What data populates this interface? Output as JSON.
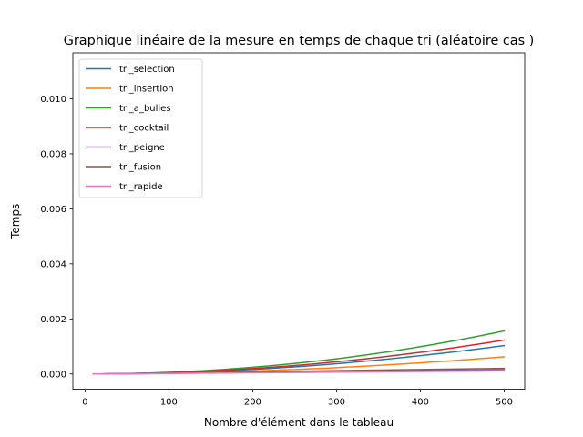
{
  "chart_data": {
    "type": "line",
    "title": "Graphique linéaire de la mesure en temps de chaque tri (aléatoire cas )",
    "xlabel": "Nombre d'élément dans le tableau",
    "ylabel": "Temps",
    "xlim": [
      -14.5,
      524.5
    ],
    "ylim": [
      -0.000556,
      0.011669
    ],
    "xticks": [
      0,
      100,
      200,
      300,
      400,
      500
    ],
    "xtick_labels": [
      "0",
      "100",
      "200",
      "300",
      "400",
      "500"
    ],
    "yticks": [
      0,
      0.002,
      0.004,
      0.006,
      0.008,
      0.01
    ],
    "ytick_labels": [
      "0.000",
      "0.002",
      "0.004",
      "0.006",
      "0.008",
      "0.010"
    ],
    "legend_position": "top-left",
    "grid": false,
    "x": [
      10,
      20,
      30,
      40,
      50,
      60,
      70,
      80,
      90,
      100,
      110,
      120,
      130,
      140,
      150,
      160,
      170,
      180,
      190,
      200,
      210,
      220,
      230,
      240,
      250,
      260,
      270,
      280,
      290,
      300,
      310,
      320,
      330,
      340,
      350,
      360,
      370,
      380,
      390,
      400,
      410,
      420,
      430,
      440,
      450,
      460,
      470,
      480,
      490,
      500
    ],
    "series": [
      {
        "name": "tri_selection",
        "color": "#1f77b4",
        "values": [
          4e-07,
          1.8e-06,
          3.9e-06,
          6.9e-06,
          1.07e-05,
          1.53e-05,
          2.08e-05,
          2.71e-05,
          3.42e-05,
          4.21e-05,
          5.09e-05,
          6.04e-05,
          7.08e-05,
          8.2e-05,
          9.4e-05,
          0.0001069,
          0.0001206,
          0.000135,
          0.0001503,
          0.0001664,
          0.0001834,
          0.0002011,
          0.0002196,
          0.000239,
          0.0002592,
          0.00028,
          0.000302,
          0.000325,
          0.000348,
          0.000373,
          0.000398,
          0.000425,
          0.000452,
          0.00048,
          0.00051,
          0.000539,
          0.00057,
          0.000601,
          0.000633,
          0.000665,
          0.000699,
          0.000733,
          0.000768,
          0.000804,
          0.00084,
          0.000877,
          0.000915,
          0.000953,
          0.000992,
          0.001033
        ]
      },
      {
        "name": "tri_insertion",
        "color": "#ff7f0e",
        "values": [
          3e-07,
          1.1e-06,
          2.6e-06,
          4.8e-06,
          7.1e-06,
          1.05e-05,
          1.36e-05,
          1.84e-05,
          2.22e-05,
          2.85e-05,
          3.49e-05,
          4.05e-05,
          4.78e-05,
          5.3e-05,
          6.24e-05,
          7.1e-05,
          7.78e-05,
          9e-05,
          9.82e-05,
          0.000107,
          0.000119,
          0.000129,
          0.00014,
          0.000153,
          0.000161,
          0.000176,
          0.00019,
          0.000201,
          0.000213,
          0.00023,
          0.000248,
          0.000262,
          0.000277,
          0.000295,
          0.000311,
          0.000333,
          0.000348,
          0.000367,
          0.000387,
          0.000404,
          0.000427,
          0.000444,
          0.000466,
          0.000485,
          0.00051,
          0.000529,
          0.000554,
          0.000576,
          0.0006,
          0.000625
        ]
      },
      {
        "name": "tri_a_bulles",
        "color": "#2ca02c",
        "values": [
          5e-07,
          2.3e-06,
          5.5e-06,
          9.5e-06,
          1.5e-05,
          2.16e-05,
          2.94e-05,
          3.9e-05,
          4.9e-05,
          6.05e-05,
          7.35e-05,
          8.78e-05,
          0.0001035,
          0.000119,
          0.000137,
          0.000156,
          0.000177,
          0.000199,
          0.000221,
          0.000245,
          0.00027,
          0.000296,
          0.000324,
          0.000353,
          0.000383,
          0.000414,
          0.000447,
          0.00048,
          0.000515,
          0.000552,
          0.00059,
          0.000629,
          0.00067,
          0.000712,
          0.000756,
          0.0008,
          0.000846,
          0.000894,
          0.000942,
          0.000993,
          0.001044,
          0.001096,
          0.001151,
          0.001206,
          0.001263,
          0.001321,
          0.00138,
          0.001441,
          0.001503,
          0.001566
        ]
      },
      {
        "name": "tri_cocktail",
        "color": "#d62728",
        "values": [
          4e-07,
          1.9e-06,
          4.4e-06,
          7.9e-06,
          1.24e-05,
          1.78e-05,
          2.42e-05,
          3.16e-05,
          4e-05,
          4.94e-05,
          5.98e-05,
          7.12e-05,
          8.34e-05,
          9.68e-05,
          0.0001112,
          0.0001264,
          0.0001428,
          0.00016,
          0.0001782,
          0.0001974,
          0.0002176,
          0.0002386,
          0.0002608,
          0.0002838,
          0.0003078,
          0.0003328,
          0.000359,
          0.000386,
          0.000414,
          0.000443,
          0.000473,
          0.000504,
          0.000536,
          0.000569,
          0.000603,
          0.000638,
          0.000674,
          0.000711,
          0.000749,
          0.000788,
          0.000828,
          0.000869,
          0.000911,
          0.000954,
          0.000998,
          0.001043,
          0.001089,
          0.001136,
          0.001184,
          0.001233
        ]
      },
      {
        "name": "tri_peigne",
        "color": "#9467bd",
        "values": [
          1.1e-06,
          3.1e-06,
          5.1e-06,
          7.4e-06,
          9.9e-06,
          1.23e-05,
          1.49e-05,
          1.74e-05,
          2.01e-05,
          2.28e-05,
          2.56e-05,
          2.84e-05,
          3.12e-05,
          3.41e-05,
          3.71e-05,
          4e-05,
          4.3e-05,
          4.6e-05,
          4.9e-05,
          5.21e-05,
          5.52e-05,
          5.83e-05,
          6.14e-05,
          6.46e-05,
          6.78e-05,
          7.1e-05,
          7.42e-05,
          7.74e-05,
          8.07e-05,
          8.4e-05,
          8.73e-05,
          9.06e-05,
          9.39e-05,
          9.73e-05,
          0.0001006,
          0.000104,
          0.0001074,
          0.0001108,
          0.0001142,
          0.0001177,
          0.0001211,
          0.0001246,
          0.0001281,
          0.0001315,
          0.000135,
          0.0001386,
          0.0001421,
          0.0001456,
          0.0001492,
          0.0001527
        ]
      },
      {
        "name": "tri_fusion",
        "color": "#8c564b",
        "values": [
          3.3e-06,
          6.9e-06,
          1.06e-05,
          1.45e-05,
          1.85e-05,
          2.23e-05,
          2.63e-05,
          3.02e-05,
          3.43e-05,
          3.83e-05,
          4.23e-05,
          4.63e-05,
          5.04e-05,
          5.45e-05,
          5.85e-05,
          6.26e-05,
          6.67e-05,
          7.08e-05,
          7.49e-05,
          7.9e-05,
          8.31e-05,
          8.73e-05,
          9.14e-05,
          9.55e-05,
          9.97e-05,
          0.0001038,
          0.000108,
          0.0001121,
          0.0001163,
          0.0001205,
          0.0001247,
          0.0001289,
          0.000133,
          0.0001372,
          0.0001414,
          0.0001456,
          0.0001498,
          0.000154,
          0.0001582,
          0.0001624,
          0.0001667,
          0.0001709,
          0.0001751,
          0.0001793,
          0.0001836,
          0.0001878,
          0.000192,
          0.0001962,
          0.0002005,
          0.0002047
        ]
      },
      {
        "name": "tri_rapide",
        "color": "#e377c2",
        "values": [
          1.6e-06,
          3.2e-06,
          5.1e-06,
          7.2e-06,
          9.4e-06,
          1.15e-05,
          1.37e-05,
          1.59e-05,
          1.81e-05,
          2.03e-05,
          2.25e-05,
          2.48e-05,
          2.7e-05,
          2.93e-05,
          3.15e-05,
          3.38e-05,
          3.61e-05,
          3.84e-05,
          4.07e-05,
          4.3e-05,
          4.53e-05,
          4.76e-05,
          4.99e-05,
          5.22e-05,
          5.45e-05,
          5.68e-05,
          5.92e-05,
          6.15e-05,
          6.38e-05,
          6.62e-05,
          6.85e-05,
          7.09e-05,
          7.32e-05,
          7.56e-05,
          7.79e-05,
          8.03e-05,
          8.26e-05,
          8.5e-05,
          8.74e-05,
          8.97e-05,
          9.21e-05,
          9.45e-05,
          9.69e-05,
          9.92e-05,
          0.0001016,
          0.000104,
          0.0001064,
          0.0001088,
          0.0001111,
          0.0001135
        ]
      }
    ]
  }
}
